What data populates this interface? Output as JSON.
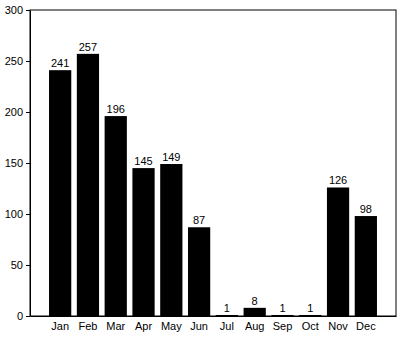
{
  "chart_data": {
    "type": "bar",
    "categories": [
      "Jan",
      "Feb",
      "Mar",
      "Apr",
      "May",
      "Jun",
      "Jul",
      "Aug",
      "Sep",
      "Oct",
      "Nov",
      "Dec"
    ],
    "values": [
      241,
      257,
      196,
      145,
      149,
      87,
      1,
      8,
      1,
      1,
      126,
      98
    ],
    "color": "#000000",
    "ylim": [
      0,
      300
    ],
    "yticks": [
      0,
      50,
      100,
      150,
      200,
      250,
      300
    ],
    "grid": false,
    "data_labels": true
  }
}
